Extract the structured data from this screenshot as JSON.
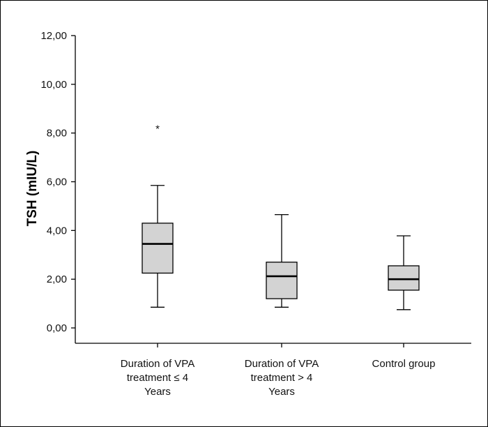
{
  "chart_data": {
    "type": "boxplot",
    "ylabel": "TSH (mIU/L)",
    "ylim": [
      0,
      12
    ],
    "yticks": [
      "0,00",
      "2,00",
      "4,00",
      "6,00",
      "8,00",
      "10,00",
      "12,00"
    ],
    "ytick_values": [
      0,
      2,
      4,
      6,
      8,
      10,
      12
    ],
    "grid": false,
    "colors": {
      "box_fill": "#d3d3d3",
      "stroke": "#000000"
    },
    "categories": [
      [
        "Duration of VPA",
        "treatment ≤ 4",
        "Years"
      ],
      [
        "Duration of VPA",
        "treatment > 4",
        "Years"
      ],
      [
        "Control group"
      ]
    ],
    "boxes": [
      {
        "whisker_low": 0.85,
        "q1": 2.25,
        "median": 3.45,
        "q3": 4.3,
        "whisker_high": 5.85,
        "outliers": [
          {
            "value": 8.35,
            "marker": "*"
          }
        ]
      },
      {
        "whisker_low": 0.85,
        "q1": 1.2,
        "median": 2.12,
        "q3": 2.7,
        "whisker_high": 4.65,
        "outliers": []
      },
      {
        "whisker_low": 0.75,
        "q1": 1.55,
        "median": 2.0,
        "q3": 2.55,
        "whisker_high": 3.78,
        "outliers": []
      }
    ]
  }
}
